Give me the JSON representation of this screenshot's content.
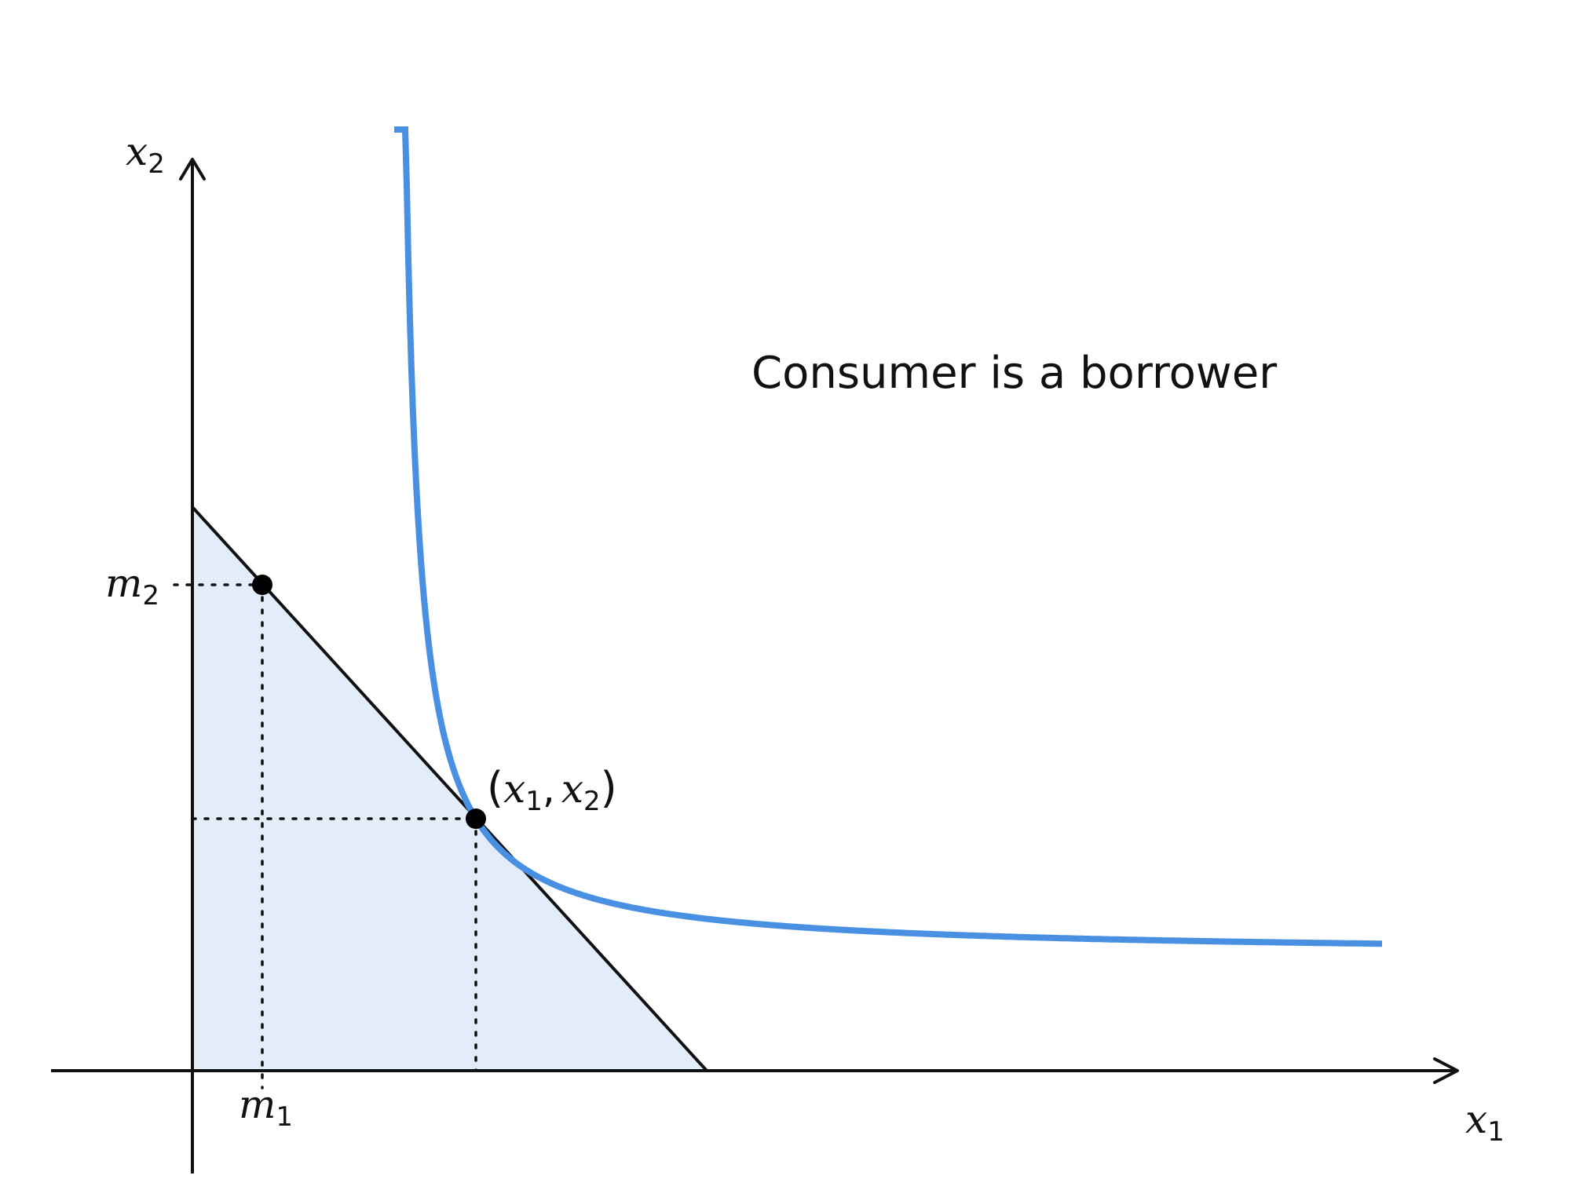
{
  "diagram": {
    "annotation": "Consumer is a borrower",
    "axes": {
      "x": {
        "var": "x",
        "sub": "1"
      },
      "y": {
        "var": "x",
        "sub": "2"
      }
    },
    "endowment": {
      "x": {
        "var": "m",
        "sub": "1"
      },
      "y": {
        "var": "m",
        "sub": "2"
      }
    },
    "optimum": {
      "open": "(",
      "v1": "x",
      "s1": "1",
      "comma": ",",
      "v2": "x",
      "s2": "2",
      "close": ")"
    },
    "colors": {
      "indifference_curve": "#4a90e2",
      "budget_region": "#e2edf9",
      "lines": "#111111"
    }
  }
}
